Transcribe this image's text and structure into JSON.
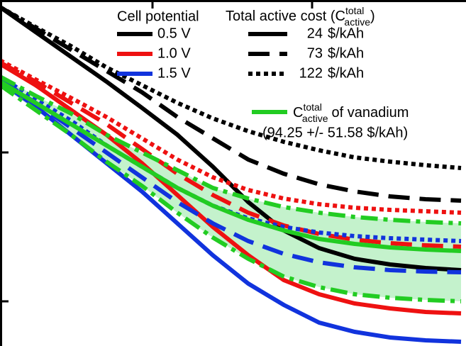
{
  "chart_data": {
    "type": "line",
    "x": [
      0,
      1,
      2,
      3,
      4,
      5,
      6,
      7,
      8,
      9,
      10,
      11,
      12,
      13
    ],
    "xlim": [
      0,
      13.14
    ],
    "ylim": [
      0,
      488
    ],
    "xticks": [
      4.3,
      8.8
    ],
    "yticks": [
      63,
      273
    ],
    "legend": {
      "potential_title": "Cell potential",
      "cost_title": "Total active cost (C",
      "cost_title_sup": "total",
      "cost_title_sub": "active",
      "cost_title_end": ")"
    },
    "costs": [
      {
        "value": 24,
        "unit": "$/kAh",
        "dash": "solid"
      },
      {
        "value": 73,
        "unit": "$/kAh",
        "dash": "dashed"
      },
      {
        "value": 122,
        "unit": "$/kAh",
        "dash": "dotted"
      }
    ],
    "series": [
      {
        "name": "0.5 V",
        "color": "#000000",
        "curves": [
          [
            478,
            443,
            408,
            373,
            336,
            298,
            253,
            203,
            163,
            138,
            123,
            115,
            110,
            107
          ],
          [
            478,
            448,
            418,
            388,
            358,
            323,
            293,
            263,
            243,
            228,
            218,
            211,
            207,
            205
          ],
          [
            478,
            450,
            423,
            393,
            368,
            343,
            321,
            303,
            288,
            276,
            266,
            260,
            255,
            251
          ]
        ]
      },
      {
        "name": "1.0 V",
        "color": "#ee1111",
        "curves": [
          [
            398,
            368,
            333,
            298,
            258,
            213,
            168,
            128,
            93,
            73,
            60,
            53,
            48,
            46
          ],
          [
            400,
            373,
            343,
            313,
            278,
            243,
            213,
            188,
            170,
            158,
            150,
            145,
            142,
            140
          ],
          [
            403,
            376,
            350,
            323,
            293,
            263,
            238,
            220,
            208,
            200,
            195,
            192,
            190,
            188
          ]
        ]
      },
      {
        "name": "1.5 V",
        "color": "#1133dd",
        "curves": [
          [
            373,
            338,
            298,
            258,
            218,
            173,
            128,
            88,
            58,
            33,
            20,
            12,
            8,
            6
          ],
          [
            376,
            343,
            308,
            273,
            238,
            203,
            173,
            148,
            130,
            118,
            111,
            107,
            105,
            104
          ],
          [
            380,
            348,
            318,
            283,
            253,
            223,
            198,
            180,
            168,
            160,
            155,
            152,
            150,
            148
          ]
        ]
      }
    ],
    "vanadium": {
      "symbol": "C",
      "sup": "total",
      "sub": "active",
      "label": "of vanadium",
      "range": "(94.25 +/- 51.58 $/kAh)",
      "color": "#22cc22",
      "fill": "#c4f2cc",
      "mean": [
        373,
        343,
        313,
        283,
        253,
        223,
        198,
        178,
        163,
        151,
        144,
        139,
        136,
        134
      ],
      "high": [
        380,
        353,
        328,
        298,
        273,
        248,
        223,
        208,
        196,
        188,
        182,
        178,
        175,
        173
      ],
      "low": [
        368,
        333,
        298,
        260,
        226,
        188,
        153,
        123,
        98,
        83,
        73,
        68,
        65,
        63
      ]
    }
  }
}
